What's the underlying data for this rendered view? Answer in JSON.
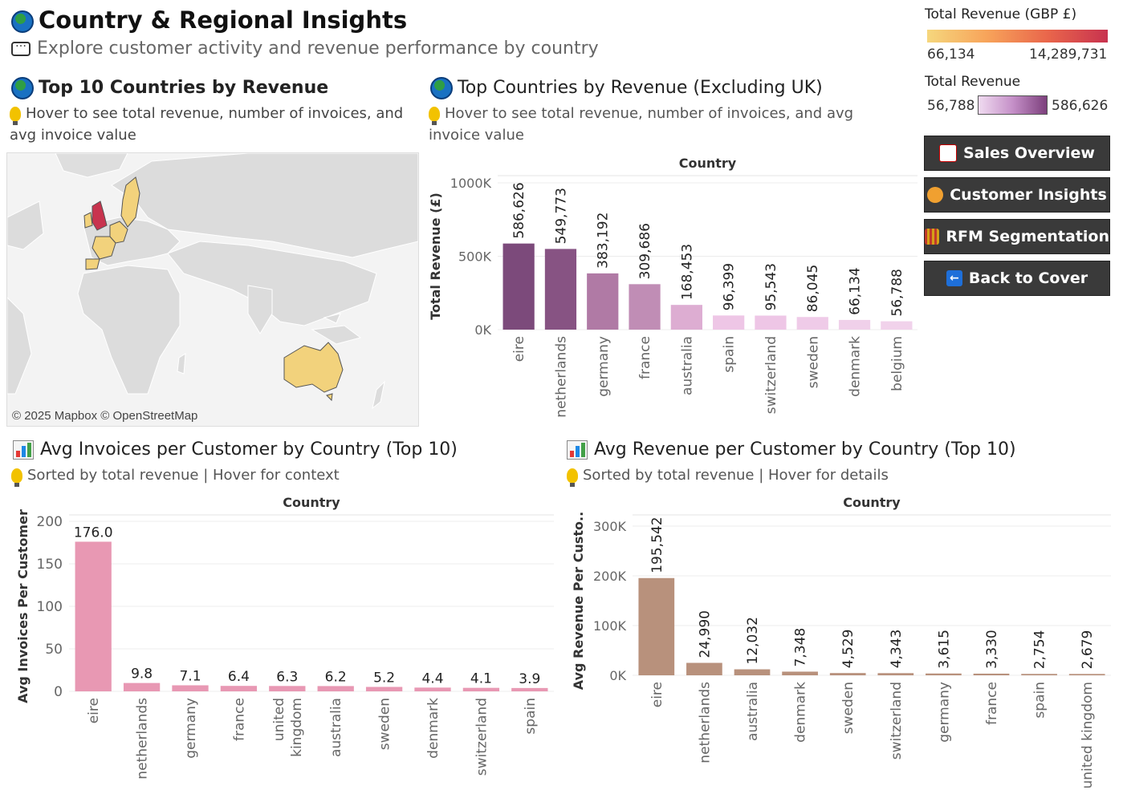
{
  "header": {
    "title": "Country & Regional Insights",
    "subtitle": "Explore customer activity and revenue performance by country"
  },
  "map_section": {
    "title": "Top 10 Countries by Revenue",
    "hint": "Hover to see total revenue, number of invoices, and avg invoice value",
    "credit": "© 2025 Mapbox © OpenStreetMap"
  },
  "legends": {
    "total_gbp": {
      "title": "Total Revenue (GBP £)",
      "min": "66,134",
      "max": "14,289,731"
    },
    "total_rev": {
      "title": "Total Revenue",
      "min": "56,788",
      "max": "586,626"
    }
  },
  "nav": {
    "sales": "Sales Overview",
    "customer": "Customer Insights",
    "rfm": "RFM Segmentation",
    "back": "Back to Cover"
  },
  "chart1": {
    "title": "Top Countries by Revenue (Excluding UK)",
    "hint": "Hover to see total revenue, number of invoices, and avg invoice value"
  },
  "chart2": {
    "title": "Avg Invoices per Customer by Country (Top 10)",
    "hint": "Sorted by total revenue | Hover for context"
  },
  "chart3": {
    "title": "Avg Revenue per Customer by Country (Top 10)",
    "hint": "Sorted by total revenue | Hover for details"
  },
  "chart_data": [
    {
      "type": "bar",
      "title": "Top Countries by Revenue (Excluding UK)",
      "column_header": "Country",
      "ylabel": "Total Revenue (£)",
      "ylim": [
        0,
        1000000
      ],
      "yticks": [
        {
          "value": 0,
          "label": "0K"
        },
        {
          "value": 500000,
          "label": "500K"
        },
        {
          "value": 1000000,
          "label": "1000K"
        }
      ],
      "categories": [
        "eire",
        "netherlands",
        "germany",
        "france",
        "australia",
        "spain",
        "switzerland",
        "sweden",
        "denmark",
        "belgium"
      ],
      "values": [
        586626,
        549773,
        383192,
        309686,
        168453,
        96399,
        95543,
        86045,
        66134,
        56788
      ],
      "labels": [
        "586,626",
        "549,773",
        "383,192",
        "309,686",
        "168,453",
        "96,399",
        "95,543",
        "86,045",
        "66,134",
        "56,788"
      ],
      "colors": [
        "#7c4a7b",
        "#875383",
        "#b07aa5",
        "#c08db5",
        "#ddadd2",
        "#eec6e6",
        "#eec6e6",
        "#efcbe8",
        "#f0d0ea",
        "#f1d2eb"
      ]
    },
    {
      "type": "bar",
      "title": "Avg Invoices per Customer by Country (Top 10)",
      "column_header": "Country",
      "ylabel": "Avg Invoices Per Customer",
      "ylim": [
        0,
        200
      ],
      "yticks": [
        {
          "value": 0,
          "label": "0"
        },
        {
          "value": 50,
          "label": "50"
        },
        {
          "value": 100,
          "label": "100"
        },
        {
          "value": 150,
          "label": "150"
        },
        {
          "value": 200,
          "label": "200"
        }
      ],
      "categories": [
        "eire",
        "netherlands",
        "germany",
        "france",
        "united kingdom",
        "australia",
        "sweden",
        "denmark",
        "switzerland",
        "spain"
      ],
      "values": [
        176.0,
        9.8,
        7.1,
        6.4,
        6.3,
        6.2,
        5.2,
        4.4,
        4.1,
        3.9
      ],
      "labels": [
        "176.0",
        "9.8",
        "7.1",
        "6.4",
        "6.3",
        "6.2",
        "5.2",
        "4.4",
        "4.1",
        "3.9"
      ],
      "color": "#e898b3"
    },
    {
      "type": "bar",
      "title": "Avg Revenue per Customer by Country (Top 10)",
      "column_header": "Country",
      "ylabel": "Avg Revenue Per Custo..",
      "ylim": [
        0,
        300000
      ],
      "yticks": [
        {
          "value": 0,
          "label": "0K"
        },
        {
          "value": 100000,
          "label": "100K"
        },
        {
          "value": 200000,
          "label": "200K"
        },
        {
          "value": 300000,
          "label": "300K"
        }
      ],
      "categories": [
        "eire",
        "netherlands",
        "australia",
        "denmark",
        "sweden",
        "switzerland",
        "germany",
        "france",
        "spain",
        "united kingdom"
      ],
      "values": [
        195542,
        24990,
        12032,
        7348,
        4529,
        4343,
        3615,
        3330,
        2754,
        2679
      ],
      "labels": [
        "195,542",
        "24,990",
        "12,032",
        "7,348",
        "4,529",
        "4,343",
        "3,615",
        "3,330",
        "2,754",
        "2,679"
      ],
      "color": "#b8917c"
    }
  ]
}
